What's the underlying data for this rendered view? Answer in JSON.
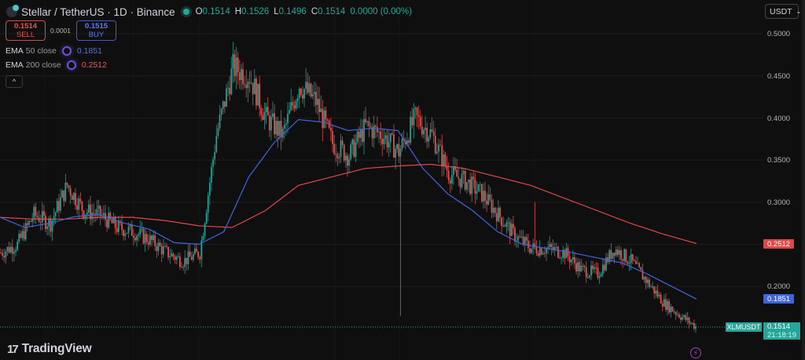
{
  "header": {
    "symbol_title": "Stellar / TetherUS · 1D · Binance",
    "ohlc": {
      "o_label": "O",
      "o": "0.1514",
      "h_label": "H",
      "h": "0.1526",
      "l_label": "L",
      "l": "0.1496",
      "c_label": "C",
      "c": "0.1514"
    },
    "change": "0.0000 (0.00%)"
  },
  "trade": {
    "sell_price": "0.1514",
    "sell_label": "SELL",
    "spread": "0.0001",
    "buy_price": "0.1515",
    "buy_label": "BUY"
  },
  "indicators": [
    {
      "name": "EMA",
      "params": "50 close",
      "value": "0.1851",
      "color": "#3f64e0"
    },
    {
      "name": "EMA",
      "params": "200 close",
      "value": "0.2512",
      "color": "#e04848"
    }
  ],
  "collapse_icon": "^",
  "currency_selector": {
    "label": "USDT",
    "chevron": "⌄"
  },
  "price_axis": {
    "ticks": [
      "0.5000",
      "0.4500",
      "0.4000",
      "0.3500",
      "0.3000",
      "0.2000"
    ],
    "ema200_label": "0.2512",
    "ema50_label": "0.1851",
    "symbol_label": "XLMUSDT",
    "current_price": "0.1514",
    "countdown": "21:18:19"
  },
  "branding": {
    "logo_mark": "17",
    "name": "TradingView"
  },
  "colors": {
    "up": "#26a69a",
    "down": "#ef5350",
    "ema50": "#3f64e0",
    "ema200": "#e04848",
    "background": "#0f0f0f",
    "grid": "#1e1e1e"
  },
  "chart_data": {
    "type": "candlestick",
    "title": "Stellar / TetherUS · 1D · Binance",
    "ylabel": "USDT",
    "ylim": [
      0.14,
      0.52
    ],
    "yticks": [
      0.2,
      0.25,
      0.3,
      0.35,
      0.4,
      0.45,
      0.5
    ],
    "grid": true,
    "legend_position": "top-left",
    "last": {
      "open": 0.1514,
      "high": 0.1526,
      "low": 0.1496,
      "close": 0.1514,
      "change": 0.0,
      "change_pct": 0.0
    },
    "series": [
      {
        "name": "XLMUSDT close (approx, sampled every ~10 days)",
        "x_index": [
          0,
          10,
          20,
          30,
          40,
          50,
          60,
          70,
          80,
          90,
          100,
          110,
          120,
          130,
          140,
          150,
          160,
          170,
          180,
          190,
          200,
          210,
          220,
          230,
          240,
          250,
          260,
          270,
          280,
          290,
          300,
          310,
          320,
          330,
          340,
          350,
          360,
          370,
          380,
          390,
          400,
          410,
          420
        ],
        "values": [
          0.24,
          0.25,
          0.285,
          0.275,
          0.32,
          0.29,
          0.285,
          0.27,
          0.265,
          0.255,
          0.24,
          0.23,
          0.24,
          0.38,
          0.46,
          0.45,
          0.4,
          0.38,
          0.44,
          0.42,
          0.37,
          0.355,
          0.39,
          0.38,
          0.36,
          0.4,
          0.38,
          0.335,
          0.325,
          0.31,
          0.285,
          0.26,
          0.245,
          0.245,
          0.24,
          0.22,
          0.215,
          0.245,
          0.23,
          0.205,
          0.18,
          0.165,
          0.151
        ]
      },
      {
        "name": "EMA 50 close",
        "last": 0.1851,
        "values": [
          0.282,
          0.27,
          0.275,
          0.283,
          0.285,
          0.275,
          0.268,
          0.252,
          0.25,
          0.265,
          0.33,
          0.37,
          0.398,
          0.395,
          0.385,
          0.388,
          0.385,
          0.34,
          0.31,
          0.29,
          0.265,
          0.25,
          0.245,
          0.24,
          0.234,
          0.228,
          0.215,
          0.2,
          0.185
        ]
      },
      {
        "name": "EMA 200 close",
        "last": 0.2512,
        "values": [
          0.282,
          0.28,
          0.28,
          0.282,
          0.282,
          0.278,
          0.272,
          0.27,
          0.29,
          0.32,
          0.33,
          0.34,
          0.343,
          0.345,
          0.34,
          0.33,
          0.32,
          0.305,
          0.29,
          0.275,
          0.262,
          0.251
        ]
      }
    ],
    "annotations": [
      "Long lower wick to ~0.165 around x≈508",
      "Long upper wick to ~0.30 around x≈677"
    ]
  }
}
